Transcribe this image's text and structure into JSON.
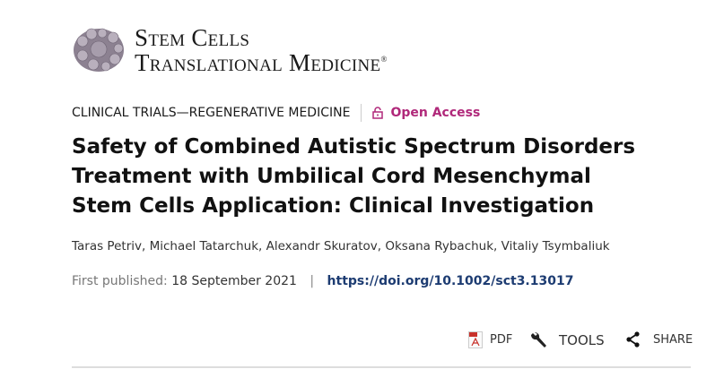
{
  "journal": {
    "logo_line1": "Stem Cells",
    "logo_line2": "Translational Medicine",
    "registered": "®"
  },
  "category": "CLINICAL TRIALS—REGENERATIVE MEDICINE",
  "access": {
    "label": "Open Access",
    "icon": "unlock-icon",
    "color": "#b0287a"
  },
  "title": "Safety of Combined Autistic Spectrum Disorders Treatment with Umbilical Cord Mesenchymal Stem Cells Application: Clinical Investigation",
  "authors": "Taras Petriv, Michael Tatarchuk, Alexandr Skuratov, Oksana Rybachuk, Vitaliy Tsymbaliuk",
  "published": {
    "label": "First published:",
    "date": "18 September 2021",
    "separator": "|",
    "doi": "https://doi.org/10.1002/sct3.13017"
  },
  "actions": {
    "pdf": "PDF",
    "tools": "TOOLS",
    "share": "SHARE"
  }
}
